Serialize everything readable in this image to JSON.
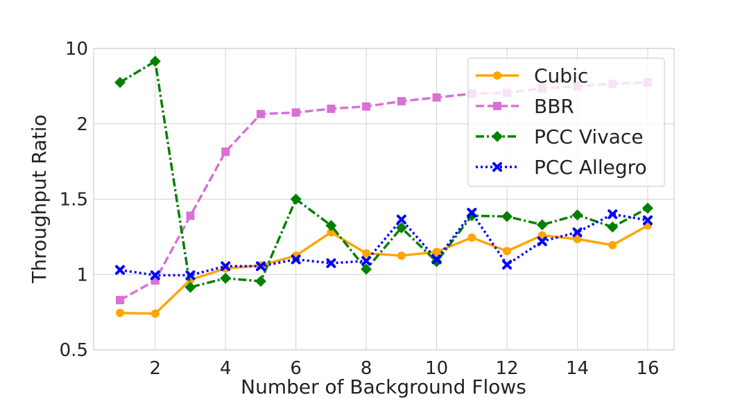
{
  "chart_data": {
    "type": "line",
    "title": "",
    "xlabel": "Number of Background Flows",
    "ylabel": "Throughput Ratio",
    "x": [
      1,
      2,
      3,
      4,
      5,
      6,
      7,
      8,
      9,
      10,
      11,
      12,
      13,
      14,
      15,
      16
    ],
    "xlim": [
      0.25,
      16.75
    ],
    "xticks": [
      2,
      4,
      6,
      8,
      10,
      12,
      14,
      16
    ],
    "ytick_labels": [
      "0.5",
      "1",
      "1.5",
      "2",
      "10"
    ],
    "ytick_levels": [
      0,
      1,
      2,
      3,
      4
    ],
    "ylim_levels": [
      0,
      4
    ],
    "grid": true,
    "legend_position": "top-right",
    "series": [
      {
        "name": "Cubic",
        "color": "#FFA500",
        "marker": "circle",
        "dash": "solid",
        "levels": [
          0.49,
          0.48,
          0.93,
          1.08,
          1.12,
          1.25,
          1.56,
          1.28,
          1.25,
          1.3,
          1.49,
          1.31,
          1.52,
          1.47,
          1.39,
          1.65
        ]
      },
      {
        "name": "BBR",
        "color": "#DA70D6",
        "marker": "square",
        "dash": "dashed",
        "levels": [
          0.66,
          0.92,
          1.78,
          2.63,
          3.13,
          3.15,
          3.2,
          3.23,
          3.3,
          3.35,
          3.4,
          3.41,
          3.47,
          3.5,
          3.53,
          3.55
        ]
      },
      {
        "name": "PCC Vivace",
        "color": "#008000",
        "marker": "diamond",
        "dash": "dashdot",
        "levels": [
          3.55,
          3.83,
          0.83,
          0.95,
          0.91,
          2.0,
          1.65,
          1.07,
          1.62,
          1.17,
          1.78,
          1.77,
          1.66,
          1.79,
          1.63,
          1.88
        ]
      },
      {
        "name": "PCC Allegro",
        "color": "#0000FF",
        "marker": "x",
        "dash": "dotted",
        "levels": [
          1.06,
          0.99,
          0.99,
          1.11,
          1.11,
          1.2,
          1.15,
          1.18,
          1.73,
          1.2,
          1.82,
          1.13,
          1.44,
          1.56,
          1.8,
          1.72
        ]
      }
    ]
  }
}
